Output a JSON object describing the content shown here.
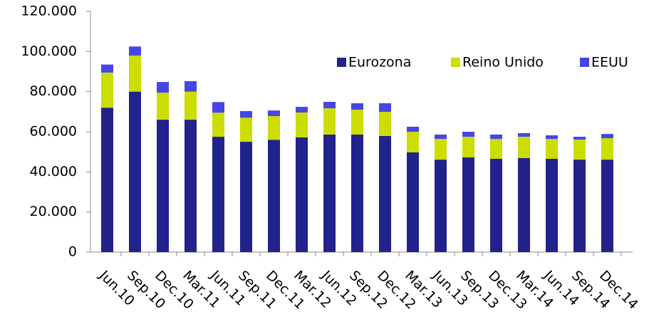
{
  "chart_data": {
    "type": "stacked_bar",
    "categories": [
      "Jun.10",
      "Sep.10",
      "Dec.10",
      "Mar.11",
      "Jun.11",
      "Sep.11",
      "Dec.11",
      "Mar.12",
      "Jun.12",
      "Sep.12",
      "Dec.12",
      "Mar.13",
      "Jun.13",
      "Sep.13",
      "Dec.13",
      "Mar.14",
      "Jun.14",
      "Sep.14",
      "Dec.14"
    ],
    "series": [
      {
        "name": "Eurozona",
        "color": "#22228c",
        "values": [
          72000,
          80000,
          66000,
          66000,
          57500,
          55000,
          56000,
          57200,
          58600,
          58600,
          57900,
          49700,
          46100,
          47200,
          46500,
          46900,
          46500,
          46100,
          46100
        ]
      },
      {
        "name": "Reino Unido",
        "color": "#ccdd00",
        "values": [
          17500,
          18000,
          13500,
          14000,
          12000,
          12000,
          11800,
          12400,
          13100,
          12400,
          12000,
          10300,
          10300,
          10300,
          9900,
          10600,
          9900,
          10000,
          10700
        ]
      },
      {
        "name": "EEUU",
        "color": "#4646e6",
        "values": [
          4000,
          4500,
          5300,
          5200,
          5300,
          3300,
          2800,
          2800,
          3200,
          3200,
          4300,
          2500,
          2200,
          2500,
          2200,
          1800,
          1800,
          1400,
          2100
        ]
      }
    ],
    "ylim": [
      0,
      120000
    ],
    "yticks": [
      0,
      {
        "value": 20000,
        "label": "20.000"
      },
      {
        "value": 40000,
        "label": "40.000"
      },
      {
        "value": 60000,
        "label": "60.000"
      },
      {
        "value": 80000,
        "label": "80.000"
      },
      {
        "value": 100000,
        "label": "100.000"
      },
      {
        "value": 120000,
        "label": "120.000"
      }
    ],
    "legend": "upper right"
  }
}
